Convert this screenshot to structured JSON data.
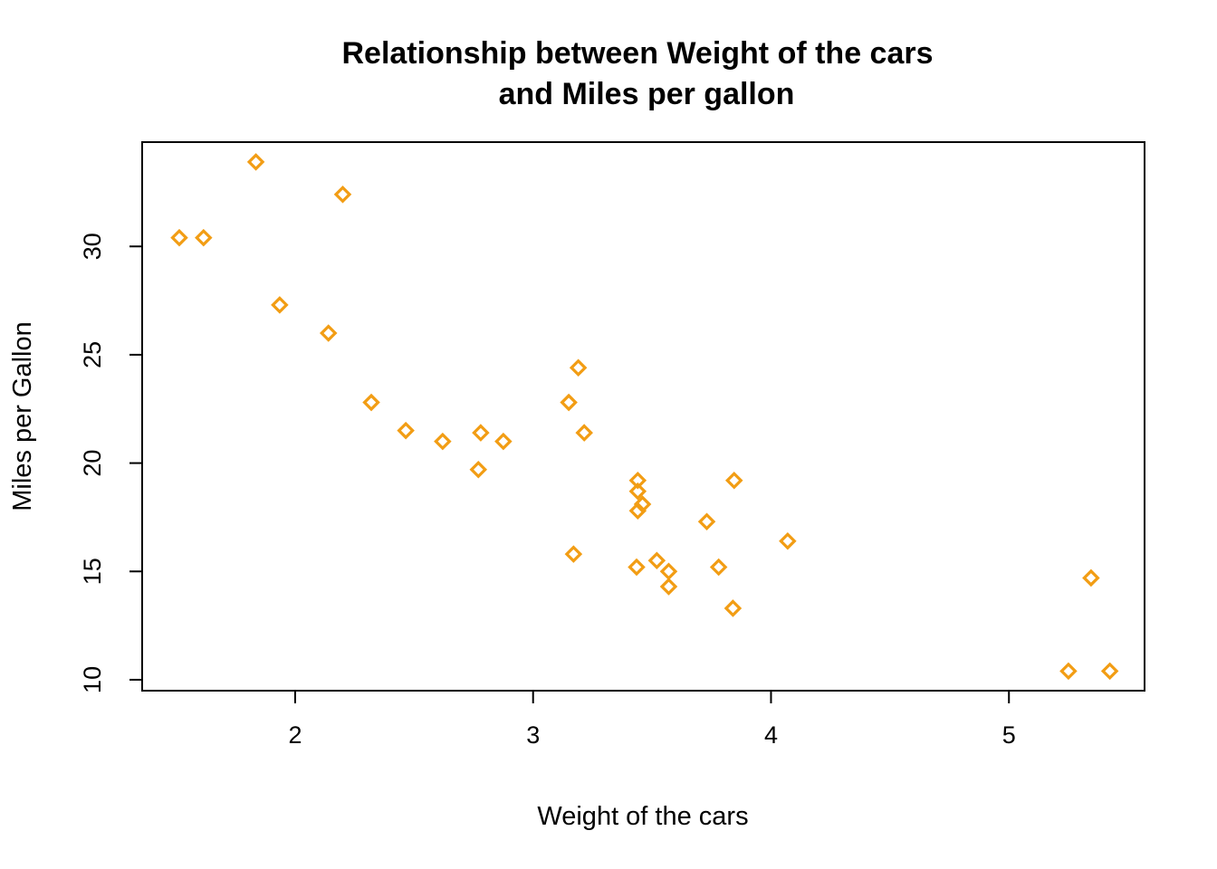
{
  "chart_data": {
    "type": "scatter",
    "title_lines": [
      "Relationship between Weight of the cars",
      "and Miles per gallon"
    ],
    "xlabel": "Weight of the cars",
    "ylabel": "Miles per Gallon",
    "xlim": [
      1.357,
      5.57
    ],
    "ylim": [
      9.496,
      34.814
    ],
    "xticks": [
      2,
      3,
      4,
      5
    ],
    "yticks": [
      10,
      15,
      20,
      25,
      30
    ],
    "grid": false,
    "legend": "none",
    "marker": "diamond-open",
    "color": "#f29d14",
    "series": [
      {
        "x": [
          2.62,
          2.875,
          2.32,
          3.215,
          3.44,
          3.46,
          3.57,
          3.19,
          3.15,
          3.44,
          3.44,
          4.07,
          3.73,
          3.78,
          5.25,
          5.424,
          5.345,
          2.2,
          1.615,
          1.835,
          2.465,
          3.52,
          3.435,
          3.84,
          3.845,
          1.935,
          2.14,
          1.513,
          3.17,
          2.77,
          3.57,
          2.78
        ],
        "y": [
          21.0,
          21.0,
          22.8,
          21.4,
          18.7,
          18.1,
          14.3,
          24.4,
          22.8,
          19.2,
          17.8,
          16.4,
          17.3,
          15.2,
          10.4,
          10.4,
          14.7,
          32.4,
          30.4,
          33.9,
          21.5,
          15.5,
          15.2,
          13.3,
          19.2,
          27.3,
          26.0,
          30.4,
          15.8,
          19.7,
          15.0,
          21.4
        ]
      }
    ]
  }
}
